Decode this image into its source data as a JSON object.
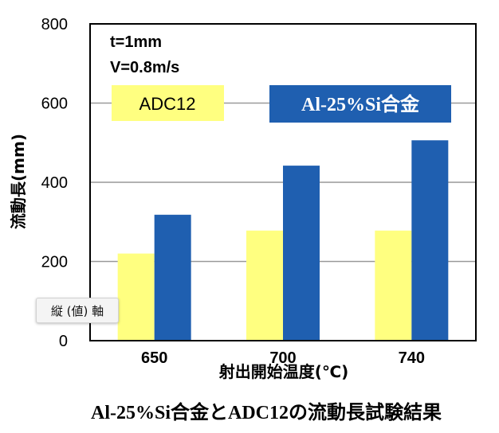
{
  "chart_data": {
    "type": "bar",
    "title": "Al-25%Si合金とADC12の流動長試験結果",
    "xlabel": "射出開始温度(℃)",
    "ylabel": "流動長(mm)",
    "categories": [
      "650",
      "700",
      "740"
    ],
    "ylim": [
      0,
      800
    ],
    "yticks": [
      "0",
      "200",
      "400",
      "600",
      "800"
    ],
    "grid": true,
    "series": [
      {
        "name": "ADC12",
        "color": "#ffff80",
        "values": [
          220,
          278,
          278
        ]
      },
      {
        "name": "Al-25%Si合金",
        "color": "#1f5fb0",
        "values": [
          318,
          442,
          506
        ]
      }
    ],
    "annotations": [
      "t=1mm",
      "V=0.8m/s"
    ],
    "legend_placement": "top"
  },
  "tooltip": "縦 (値) 軸"
}
